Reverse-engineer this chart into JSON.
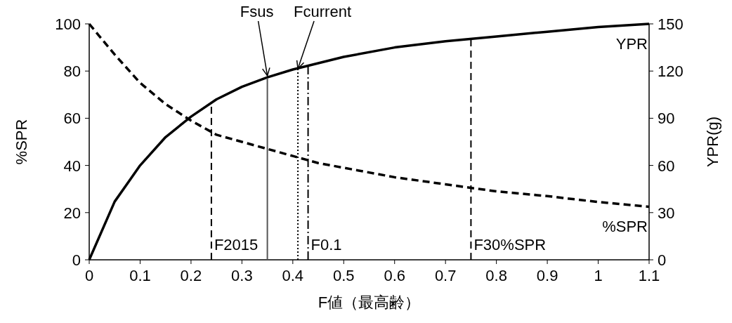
{
  "chart_data": {
    "type": "line",
    "xlabel": "F値（最高齢）",
    "ylabel": "%SPR",
    "y2label": "YPR(g)",
    "xlim": [
      0,
      1.1
    ],
    "xticks": [
      0,
      0.1,
      0.2,
      0.3,
      0.4,
      0.5,
      0.6,
      0.7,
      0.8,
      0.9,
      1,
      1.1
    ],
    "ylim": [
      0,
      100
    ],
    "yticks": [
      0,
      20,
      40,
      60,
      80,
      100
    ],
    "y2lim": [
      0,
      150
    ],
    "y2ticks": [
      0,
      30,
      60,
      90,
      120,
      150
    ],
    "grid": false,
    "series": [
      {
        "name": "YPR",
        "color": "#000000",
        "axis": "y2",
        "line_style": "solid",
        "x": [
          0,
          0.05,
          0.1,
          0.15,
          0.2,
          0.25,
          0.3,
          0.35,
          0.4,
          0.45,
          0.5,
          0.6,
          0.7,
          0.8,
          0.9,
          1,
          1.1
        ],
        "values": [
          0,
          37,
          60,
          78,
          91,
          102,
          110,
          116,
          121,
          125,
          129,
          135,
          139,
          142,
          145,
          148,
          150
        ]
      },
      {
        "name": "%SPR",
        "color": "#000000",
        "line_style": "dashed",
        "x": [
          0,
          0.05,
          0.1,
          0.15,
          0.2,
          0.25,
          0.3,
          0.35,
          0.4,
          0.45,
          0.5,
          0.6,
          0.7,
          0.8,
          0.9,
          1,
          1.1
        ],
        "values": [
          100,
          87,
          75,
          66,
          59,
          53,
          50,
          47,
          44,
          41,
          39,
          35,
          32,
          29,
          27,
          24.5,
          22.5
        ]
      },
      {
        "name": "F2015",
        "color": "#000000",
        "line_style": "dashed",
        "x": [
          0.24,
          0.24
        ],
        "values": [
          0,
          66
        ]
      },
      {
        "color": "#555555",
        "line_style": "solid",
        "x": [
          0.35,
          0.35
        ],
        "values": [
          0,
          77
        ]
      },
      {
        "color": "#000000",
        "line_style": "dotted",
        "x": [
          0.41,
          0.41
        ],
        "values": [
          0,
          81
        ]
      },
      {
        "name": "F0.1",
        "color": "#000000",
        "line_style": "dashdot",
        "x": [
          0.43,
          0.43
        ],
        "values": [
          0,
          82
        ]
      },
      {
        "name": "F30%SPR",
        "color": "#000000",
        "line_style": "dashed",
        "x": [
          0.75,
          0.75
        ],
        "values": [
          0,
          94
        ]
      }
    ],
    "annotations": [
      {
        "text": "Fsus",
        "x": 0.35,
        "y": 78
      },
      {
        "text": "Fcurrent",
        "x": 0.41,
        "y": 81
      }
    ]
  }
}
